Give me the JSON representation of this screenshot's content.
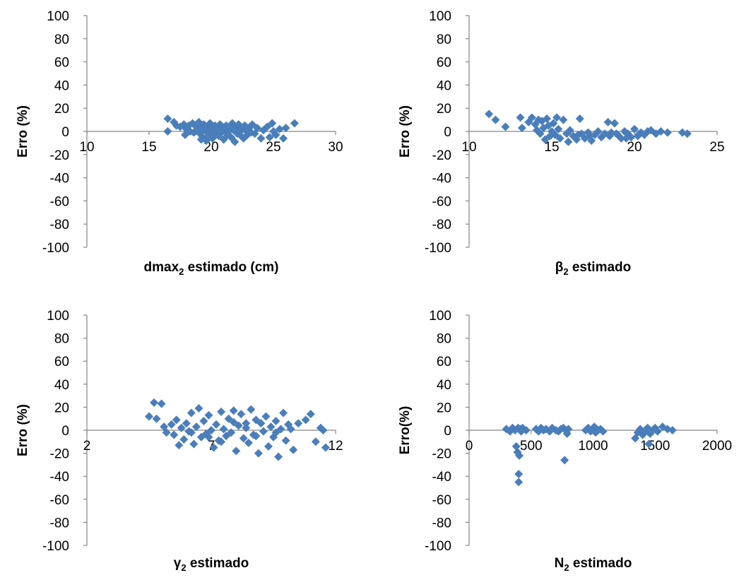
{
  "chart_data": [
    {
      "type": "scatter",
      "xlabel": "dmax",
      "xlabel_sub": "2",
      "xlabel_rest": " estimado (cm)",
      "ylabel": "Erro (%)",
      "xlim": [
        10,
        30
      ],
      "ylim": [
        -100,
        100
      ],
      "xticks": [
        "10",
        "15",
        "20",
        "25",
        "30"
      ],
      "yticks": [
        "100",
        "80",
        "60",
        "40",
        "20",
        "0",
        "-20",
        "-40",
        "-60",
        "-80",
        "-100"
      ],
      "marker_color": "#4a7ebb",
      "points": [
        [
          16.5,
          11
        ],
        [
          16.5,
          0
        ],
        [
          17,
          8
        ],
        [
          17.2,
          5
        ],
        [
          17.5,
          4
        ],
        [
          17.8,
          6
        ],
        [
          17.9,
          -3
        ],
        [
          18,
          2
        ],
        [
          18.2,
          5
        ],
        [
          18.3,
          0
        ],
        [
          18.5,
          7
        ],
        [
          18.6,
          -1
        ],
        [
          18.8,
          4
        ],
        [
          18.9,
          2
        ],
        [
          19,
          8
        ],
        [
          19.1,
          -2
        ],
        [
          19.2,
          3
        ],
        [
          19.3,
          -5
        ],
        [
          19.4,
          6
        ],
        [
          19.5,
          1
        ],
        [
          19.6,
          -8
        ],
        [
          19.7,
          4
        ],
        [
          19.8,
          -3
        ],
        [
          19.9,
          7
        ],
        [
          20,
          0
        ],
        [
          20.1,
          -6
        ],
        [
          20.2,
          3
        ],
        [
          20.3,
          5
        ],
        [
          20.4,
          -2
        ],
        [
          20.5,
          2
        ],
        [
          20.6,
          -4
        ],
        [
          20.7,
          6
        ],
        [
          20.8,
          -1
        ],
        [
          20.9,
          4
        ],
        [
          21,
          -7
        ],
        [
          21.1,
          2
        ],
        [
          21.2,
          5
        ],
        [
          21.3,
          -3
        ],
        [
          21.4,
          0
        ],
        [
          21.5,
          3
        ],
        [
          21.6,
          -5
        ],
        [
          21.7,
          7
        ],
        [
          21.8,
          1
        ],
        [
          21.9,
          -9
        ],
        [
          22,
          4
        ],
        [
          22.1,
          -2
        ],
        [
          22.2,
          6
        ],
        [
          22.3,
          0
        ],
        [
          22.4,
          -4
        ],
        [
          22.5,
          3
        ],
        [
          22.6,
          -6
        ],
        [
          22.7,
          5
        ],
        [
          22.8,
          1
        ],
        [
          22.9,
          -3
        ],
        [
          23,
          2
        ],
        [
          23.1,
          4
        ],
        [
          23.2,
          -1
        ],
        [
          23.3,
          6
        ],
        [
          23.5,
          -2
        ],
        [
          23.7,
          3
        ],
        [
          24,
          -6
        ],
        [
          24.2,
          1
        ],
        [
          24.5,
          4
        ],
        [
          24.7,
          -5
        ],
        [
          24.9,
          7
        ],
        [
          25,
          0
        ],
        [
          25.2,
          -3
        ],
        [
          25.5,
          2
        ],
        [
          25.8,
          -6
        ],
        [
          26,
          3
        ],
        [
          26.7,
          7
        ],
        [
          19.2,
          -7
        ],
        [
          20.8,
          5
        ],
        [
          21.9,
          1
        ],
        [
          18.7,
          0
        ],
        [
          22.6,
          2
        ]
      ]
    },
    {
      "type": "scatter",
      "xlabel": "β",
      "xlabel_sub": "2",
      "xlabel_rest": " estimado",
      "ylabel": "Erro (%)",
      "xlim": [
        10,
        25
      ],
      "ylim": [
        -100,
        100
      ],
      "xticks": [
        "10",
        "15",
        "20",
        "25"
      ],
      "yticks": [
        "100",
        "80",
        "60",
        "40",
        "20",
        "0",
        "-20",
        "-40",
        "-60",
        "-80",
        "-100"
      ],
      "marker_color": "#4a7ebb",
      "points": [
        [
          11.2,
          15
        ],
        [
          11.6,
          10
        ],
        [
          12.2,
          4
        ],
        [
          13.1,
          12
        ],
        [
          13.2,
          3
        ],
        [
          13.6,
          8
        ],
        [
          13.8,
          12
        ],
        [
          14,
          6
        ],
        [
          14.1,
          1
        ],
        [
          14.2,
          10
        ],
        [
          14.3,
          -2
        ],
        [
          14.4,
          9
        ],
        [
          14.5,
          3
        ],
        [
          14.6,
          -7
        ],
        [
          14.7,
          11
        ],
        [
          14.8,
          5
        ],
        [
          14.9,
          -4
        ],
        [
          15,
          0
        ],
        [
          15.1,
          7
        ],
        [
          15.2,
          -3
        ],
        [
          15.3,
          12
        ],
        [
          15.4,
          2
        ],
        [
          15.5,
          -6
        ],
        [
          15.7,
          10
        ],
        [
          15.9,
          -2
        ],
        [
          16,
          -9
        ],
        [
          16.1,
          1
        ],
        [
          16.3,
          -4
        ],
        [
          16.5,
          -7
        ],
        [
          16.7,
          11
        ],
        [
          16.8,
          -2
        ],
        [
          17,
          -6
        ],
        [
          17.2,
          -1
        ],
        [
          17.4,
          -8
        ],
        [
          17.6,
          -3
        ],
        [
          17.8,
          0
        ],
        [
          18,
          -5
        ],
        [
          18.2,
          -2
        ],
        [
          18.4,
          8
        ],
        [
          18.5,
          -4
        ],
        [
          18.6,
          -1
        ],
        [
          18.8,
          7
        ],
        [
          19,
          -3
        ],
        [
          19.2,
          -6
        ],
        [
          19.4,
          0
        ],
        [
          19.6,
          -2
        ],
        [
          19.8,
          -5
        ],
        [
          20,
          2
        ],
        [
          20.2,
          -4
        ],
        [
          20.4,
          -1
        ],
        [
          20.6,
          -3
        ],
        [
          20.8,
          0
        ],
        [
          21,
          1
        ],
        [
          21.3,
          -2
        ],
        [
          21.6,
          0
        ],
        [
          22,
          -1
        ],
        [
          22.9,
          -1
        ],
        [
          23.2,
          -2
        ],
        [
          17.3,
          -4
        ],
        [
          18.9,
          -2
        ],
        [
          19.5,
          -6
        ],
        [
          16.6,
          -3
        ],
        [
          20.3,
          -2
        ]
      ]
    },
    {
      "type": "scatter",
      "xlabel": "γ",
      "xlabel_sub": "2",
      "xlabel_rest": " estimado",
      "ylabel": "Erro (%)",
      "xlim": [
        2,
        12
      ],
      "ylim": [
        -100,
        100
      ],
      "xticks": [
        "2",
        "7",
        "12"
      ],
      "yticks": [
        "100",
        "80",
        "60",
        "40",
        "20",
        "0",
        "-20",
        "-40",
        "-60",
        "-80",
        "-100"
      ],
      "marker_color": "#4a7ebb",
      "points": [
        [
          4.5,
          12
        ],
        [
          4.7,
          24
        ],
        [
          4.8,
          10
        ],
        [
          5,
          23
        ],
        [
          5.1,
          3
        ],
        [
          5.2,
          -2
        ],
        [
          5.4,
          5
        ],
        [
          5.5,
          -4
        ],
        [
          5.6,
          9
        ],
        [
          5.8,
          2
        ],
        [
          5.9,
          -8
        ],
        [
          6,
          6
        ],
        [
          6.1,
          -1
        ],
        [
          6.2,
          15
        ],
        [
          6.3,
          -12
        ],
        [
          6.4,
          3
        ],
        [
          6.5,
          19
        ],
        [
          6.6,
          -6
        ],
        [
          6.7,
          8
        ],
        [
          6.8,
          -3
        ],
        [
          6.9,
          13
        ],
        [
          7,
          0
        ],
        [
          7.1,
          -15
        ],
        [
          7.2,
          5
        ],
        [
          7.3,
          -9
        ],
        [
          7.4,
          16
        ],
        [
          7.5,
          1
        ],
        [
          7.6,
          -5
        ],
        [
          7.7,
          10
        ],
        [
          7.8,
          -2
        ],
        [
          7.9,
          7
        ],
        [
          8,
          -18
        ],
        [
          8.1,
          4
        ],
        [
          8.2,
          14
        ],
        [
          8.3,
          -7
        ],
        [
          8.4,
          2
        ],
        [
          8.5,
          -11
        ],
        [
          8.6,
          18
        ],
        [
          8.7,
          -4
        ],
        [
          8.8,
          9
        ],
        [
          8.9,
          -20
        ],
        [
          9,
          6
        ],
        [
          9.1,
          -1
        ],
        [
          9.2,
          12
        ],
        [
          9.3,
          -14
        ],
        [
          9.4,
          3
        ],
        [
          9.5,
          -6
        ],
        [
          9.6,
          8
        ],
        [
          9.7,
          -23
        ],
        [
          9.8,
          1
        ],
        [
          9.9,
          15
        ],
        [
          10,
          -9
        ],
        [
          10.1,
          5
        ],
        [
          10.3,
          -17
        ],
        [
          10.5,
          6
        ],
        [
          10.8,
          9
        ],
        [
          11,
          14
        ],
        [
          11.2,
          -10
        ],
        [
          11.4,
          2
        ],
        [
          11.6,
          -15
        ],
        [
          6.2,
          -2
        ],
        [
          7.4,
          -10
        ],
        [
          8.4,
          6
        ],
        [
          9.6,
          -2
        ],
        [
          5.7,
          -13
        ],
        [
          7.9,
          17
        ],
        [
          6.9,
          -6
        ],
        [
          8.8,
          -5
        ],
        [
          10.2,
          1
        ],
        [
          11.5,
          0
        ]
      ]
    },
    {
      "type": "scatter",
      "xlabel": "N",
      "xlabel_sub": "2",
      "xlabel_rest": " estimado",
      "ylabel": "Erro(%)",
      "xlim": [
        0,
        2000
      ],
      "ylim": [
        -100,
        100
      ],
      "xticks": [
        "0",
        "500",
        "1000",
        "1500",
        "2000"
      ],
      "yticks": [
        "100",
        "80",
        "60",
        "40",
        "20",
        "0",
        "-20",
        "-40",
        "-60",
        "-80",
        "-100"
      ],
      "marker_color": "#4a7ebb",
      "points": [
        [
          300,
          1
        ],
        [
          330,
          -1
        ],
        [
          350,
          2
        ],
        [
          370,
          0
        ],
        [
          380,
          -14
        ],
        [
          390,
          -19
        ],
        [
          395,
          2
        ],
        [
          400,
          -38
        ],
        [
          400,
          -45
        ],
        [
          405,
          -22
        ],
        [
          410,
          1
        ],
        [
          420,
          -1
        ],
        [
          430,
          2
        ],
        [
          460,
          0
        ],
        [
          540,
          1
        ],
        [
          560,
          -1
        ],
        [
          580,
          2
        ],
        [
          600,
          0
        ],
        [
          620,
          1
        ],
        [
          650,
          -1
        ],
        [
          670,
          2
        ],
        [
          700,
          0
        ],
        [
          720,
          -1
        ],
        [
          740,
          1
        ],
        [
          760,
          2
        ],
        [
          770,
          -26
        ],
        [
          780,
          0
        ],
        [
          790,
          -3
        ],
        [
          800,
          1
        ],
        [
          940,
          0
        ],
        [
          960,
          2
        ],
        [
          980,
          -1
        ],
        [
          1000,
          1
        ],
        [
          1010,
          3
        ],
        [
          1020,
          -2
        ],
        [
          1040,
          0
        ],
        [
          1060,
          1
        ],
        [
          1080,
          -1
        ],
        [
          1340,
          -7
        ],
        [
          1360,
          -2
        ],
        [
          1380,
          1
        ],
        [
          1400,
          -4
        ],
        [
          1420,
          0
        ],
        [
          1440,
          2
        ],
        [
          1450,
          -12
        ],
        [
          1460,
          -3
        ],
        [
          1480,
          0
        ],
        [
          1500,
          2
        ],
        [
          1520,
          -1
        ],
        [
          1560,
          3
        ],
        [
          1600,
          1
        ],
        [
          1640,
          0
        ]
      ]
    }
  ]
}
